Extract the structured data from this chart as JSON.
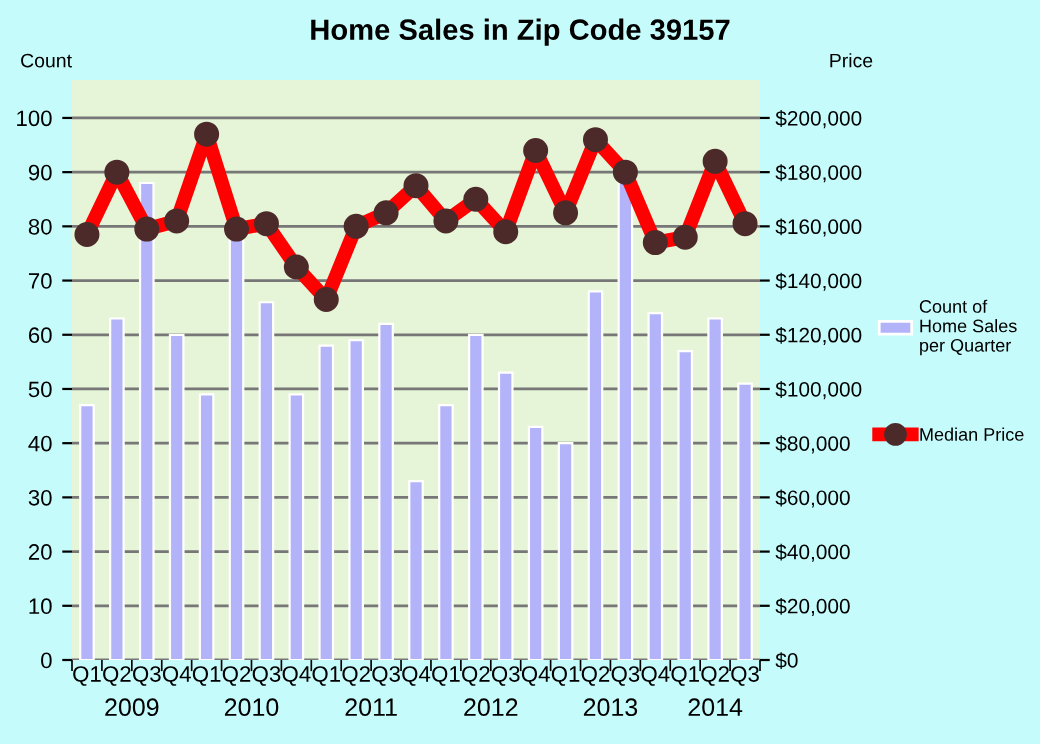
{
  "chart_data": {
    "type": "bar",
    "title": "Home Sales in Zip Code 39157",
    "ylabel": "Count",
    "y2label": "Price",
    "categories": [
      "Q1",
      "Q2",
      "Q3",
      "Q4",
      "Q1",
      "Q2",
      "Q3",
      "Q4",
      "Q1",
      "Q2",
      "Q3",
      "Q4",
      "Q1",
      "Q2",
      "Q3",
      "Q4",
      "Q1",
      "Q2",
      "Q3",
      "Q4",
      "Q1",
      "Q2",
      "Q3"
    ],
    "annotations": [
      "2009",
      "2010",
      "2011",
      "2012",
      "2013",
      "2014"
    ],
    "series": [
      {
        "name": "Count of\nHome Sales\nper Quarter",
        "color": "#b3b3fa",
        "values": [
          47,
          63,
          88,
          60,
          49,
          78,
          66,
          49,
          58,
          59,
          62,
          33,
          47,
          60,
          53,
          43,
          40,
          68,
          88,
          64,
          57,
          63,
          51
        ]
      },
      {
        "name": "Median Price",
        "type": "line",
        "axis": "y2",
        "color": "#ff0000",
        "marker": "circle",
        "line_style": "solid",
        "values": [
          157000,
          180000,
          159000,
          162000,
          194000,
          159000,
          161000,
          145000,
          133000,
          160000,
          165000,
          175000,
          162000,
          170000,
          158000,
          188000,
          165000,
          192000,
          180000,
          154000,
          156000,
          184000,
          161000
        ]
      }
    ],
    "ylim": [
      0,
      107
    ],
    "yticks": [
      0,
      10,
      20,
      30,
      40,
      50,
      60,
      70,
      80,
      90,
      100
    ],
    "y2lim": [
      0,
      214000
    ],
    "y2ticks": [
      {
        "value": 0,
        "label": "$0"
      },
      {
        "value": 20000,
        "label": "$20,000"
      },
      {
        "value": 40000,
        "label": "$40,000"
      },
      {
        "value": 60000,
        "label": "$60,000"
      },
      {
        "value": 80000,
        "label": "$80,000"
      },
      {
        "value": 100000,
        "label": "$100,000"
      },
      {
        "value": 120000,
        "label": "$120,000"
      },
      {
        "value": 140000,
        "label": "$140,000"
      },
      {
        "value": 160000,
        "label": "$160,000"
      },
      {
        "value": 180000,
        "label": "$180,000"
      },
      {
        "value": 200000,
        "label": "$200,000"
      }
    ],
    "grid": "y",
    "legend": "right"
  }
}
